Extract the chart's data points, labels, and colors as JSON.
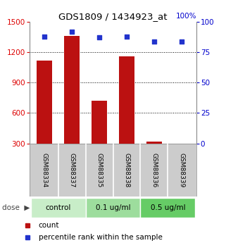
{
  "title": "GDS1809 / 1434923_at",
  "samples": [
    "GSM88334",
    "GSM88337",
    "GSM88335",
    "GSM88338",
    "GSM88336",
    "GSM88339"
  ],
  "groups": [
    {
      "label": "control",
      "indices": [
        0,
        1
      ],
      "color": "#c8edc8"
    },
    {
      "label": "0.1 ug/ml",
      "indices": [
        2,
        3
      ],
      "color": "#9ddd9d"
    },
    {
      "label": "0.5 ug/ml",
      "indices": [
        4,
        5
      ],
      "color": "#66cc66"
    }
  ],
  "bar_values": [
    1120,
    1360,
    720,
    1160,
    320,
    270
  ],
  "dot_values": [
    88,
    92,
    87,
    88,
    84,
    84
  ],
  "bar_color": "#bb1111",
  "dot_color": "#2233cc",
  "ylim_left": [
    300,
    1500
  ],
  "ylim_right": [
    0,
    100
  ],
  "yticks_left": [
    300,
    600,
    900,
    1200,
    1500
  ],
  "yticks_right": [
    0,
    25,
    50,
    75,
    100
  ],
  "ylabel_left_color": "#dd0000",
  "ylabel_right_color": "#0000cc",
  "label_count": "count",
  "label_percentile": "percentile rank within the sample",
  "bg_color": "#ffffff",
  "sample_box_color": "#cccccc",
  "sample_divider_color": "#ffffff",
  "group_label_colors": [
    "#c8edc8",
    "#9ddd9d",
    "#66cc66"
  ]
}
